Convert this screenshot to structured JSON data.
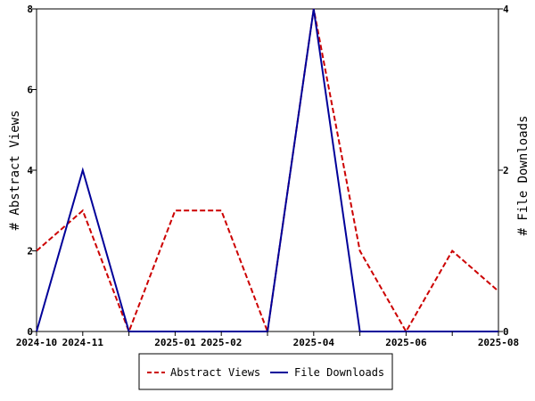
{
  "chart_data": {
    "type": "line",
    "x": [
      "2024-10",
      "2024-11",
      "2024-12",
      "2025-01",
      "2025-02",
      "2025-03",
      "2025-04",
      "2025-05",
      "2025-06",
      "2025-07",
      "2025-08"
    ],
    "x_tick_labels": [
      "2024-10",
      "2024-11",
      "2025-01",
      "2025-02",
      "2025-04",
      "2025-06",
      "2025-08"
    ],
    "series": [
      {
        "name": "Abstract Views",
        "axis": "left",
        "color": "#cc0000",
        "style": "dashed",
        "values": [
          2,
          3,
          0,
          3,
          3,
          0,
          8,
          2,
          0,
          2,
          1
        ]
      },
      {
        "name": "File Downloads",
        "axis": "right",
        "color": "#000099",
        "style": "solid",
        "values": [
          0,
          2,
          0,
          0,
          0,
          0,
          4,
          0,
          0,
          0,
          0
        ]
      }
    ],
    "ylabel": "# Abstract Views",
    "y2label": "# File Downloads",
    "ylim": [
      0,
      8
    ],
    "y2lim": [
      0,
      4
    ],
    "y_ticks": [
      0,
      2,
      4,
      6,
      8
    ],
    "y2_ticks": [
      0,
      2,
      4
    ],
    "grid": false,
    "legend_position": "bottom-center"
  }
}
